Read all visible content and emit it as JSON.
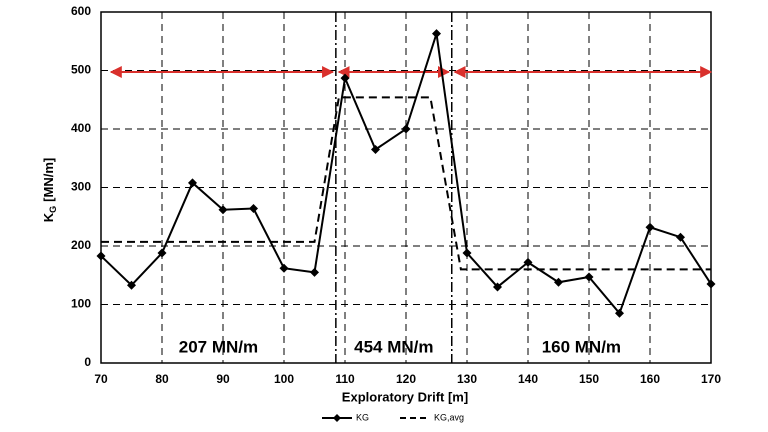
{
  "chart_data": {
    "type": "line",
    "x_label": "Exploratory Drift [m]",
    "y_label_main": "K",
    "y_label_sub": "G",
    "y_label_unit": "[MN/m]",
    "xlim": [
      70,
      170
    ],
    "xticks": [
      70,
      80,
      90,
      100,
      110,
      120,
      130,
      140,
      150,
      160,
      170
    ],
    "ylim": [
      0,
      600
    ],
    "yticks": [
      0,
      100,
      200,
      300,
      400,
      500,
      600
    ],
    "grid": true,
    "boundaries": [
      108.5,
      127.5
    ],
    "annotations": [
      "207 MN/m",
      "454 MN/m",
      "160 MN/m"
    ],
    "series": [
      {
        "name": "KG",
        "color": "#000000",
        "style": "solid-diamond",
        "x": [
          70,
          75,
          80,
          85,
          90,
          95,
          100,
          105,
          110,
          115,
          120,
          125,
          130,
          135,
          140,
          145,
          150,
          155,
          160,
          165,
          170
        ],
        "values": [
          183,
          133,
          188,
          308,
          262,
          264,
          162,
          155,
          487,
          365,
          400,
          563,
          188,
          130,
          172,
          138,
          147,
          85,
          232,
          215,
          135
        ]
      },
      {
        "name": "KG,avg",
        "color": "#000000",
        "style": "dashed",
        "x": [
          70,
          105,
          109,
          124,
          129,
          170
        ],
        "values": [
          207,
          207,
          454,
          454,
          160,
          160
        ]
      }
    ]
  }
}
